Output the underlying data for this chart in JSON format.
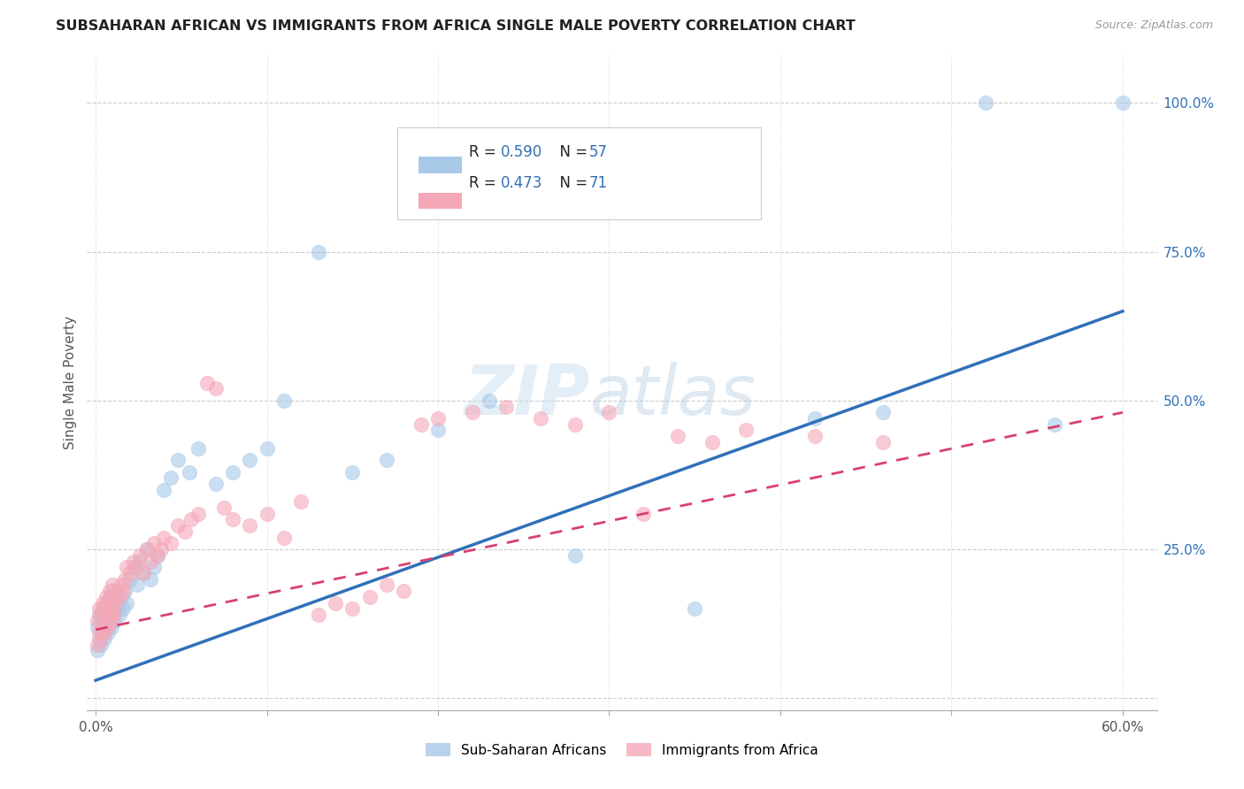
{
  "title": "SUBSAHARAN AFRICAN VS IMMIGRANTS FROM AFRICA SINGLE MALE POVERTY CORRELATION CHART",
  "source": "Source: ZipAtlas.com",
  "ylabel": "Single Male Poverty",
  "xlim": [
    -0.005,
    0.62
  ],
  "ylim": [
    -0.02,
    1.08
  ],
  "xtick_positions": [
    0.0,
    0.1,
    0.2,
    0.3,
    0.4,
    0.5,
    0.6
  ],
  "xticklabels": [
    "0.0%",
    "",
    "",
    "",
    "",
    "",
    "60.0%"
  ],
  "ytick_positions": [
    0.0,
    0.25,
    0.5,
    0.75,
    1.0
  ],
  "yticklabels": [
    "",
    "25.0%",
    "50.0%",
    "75.0%",
    "100.0%"
  ],
  "blue_R": 0.59,
  "blue_N": 57,
  "pink_R": 0.473,
  "pink_N": 71,
  "blue_scatter_color": "#a8c8e8",
  "pink_scatter_color": "#f5a8b8",
  "blue_line_color": "#3070b8",
  "pink_line_color": "#d84070",
  "watermark_zip": "ZIP",
  "watermark_atlas": "atlas",
  "legend_label_blue": "Sub-Saharan Africans",
  "legend_label_pink": "Immigrants from Africa",
  "blue_line_x": [
    0.0,
    0.6
  ],
  "blue_line_y": [
    0.03,
    0.65
  ],
  "pink_line_x": [
    0.0,
    0.6
  ],
  "pink_line_y": [
    0.115,
    0.48
  ],
  "blue_scatter_x": [
    0.001,
    0.001,
    0.002,
    0.002,
    0.003,
    0.003,
    0.004,
    0.004,
    0.005,
    0.005,
    0.006,
    0.006,
    0.007,
    0.008,
    0.008,
    0.009,
    0.01,
    0.01,
    0.011,
    0.012,
    0.013,
    0.014,
    0.015,
    0.016,
    0.017,
    0.018,
    0.02,
    0.022,
    0.024,
    0.026,
    0.028,
    0.03,
    0.032,
    0.034,
    0.036,
    0.04,
    0.044,
    0.048,
    0.055,
    0.06,
    0.07,
    0.08,
    0.09,
    0.1,
    0.11,
    0.13,
    0.15,
    0.17,
    0.2,
    0.23,
    0.28,
    0.35,
    0.42,
    0.46,
    0.52,
    0.56,
    0.6
  ],
  "blue_scatter_y": [
    0.08,
    0.12,
    0.1,
    0.14,
    0.09,
    0.13,
    0.11,
    0.15,
    0.1,
    0.14,
    0.12,
    0.16,
    0.11,
    0.13,
    0.17,
    0.12,
    0.14,
    0.18,
    0.13,
    0.15,
    0.16,
    0.14,
    0.17,
    0.15,
    0.18,
    0.16,
    0.2,
    0.22,
    0.19,
    0.23,
    0.21,
    0.25,
    0.2,
    0.22,
    0.24,
    0.35,
    0.37,
    0.4,
    0.38,
    0.42,
    0.36,
    0.38,
    0.4,
    0.42,
    0.5,
    0.75,
    0.38,
    0.4,
    0.45,
    0.5,
    0.24,
    0.15,
    0.47,
    0.48,
    1.0,
    0.46,
    1.0
  ],
  "pink_scatter_x": [
    0.001,
    0.001,
    0.002,
    0.002,
    0.003,
    0.003,
    0.004,
    0.004,
    0.005,
    0.005,
    0.006,
    0.006,
    0.007,
    0.007,
    0.008,
    0.008,
    0.009,
    0.009,
    0.01,
    0.01,
    0.011,
    0.012,
    0.013,
    0.014,
    0.015,
    0.016,
    0.017,
    0.018,
    0.02,
    0.022,
    0.024,
    0.026,
    0.028,
    0.03,
    0.032,
    0.034,
    0.036,
    0.038,
    0.04,
    0.044,
    0.048,
    0.052,
    0.056,
    0.06,
    0.065,
    0.07,
    0.075,
    0.08,
    0.09,
    0.1,
    0.11,
    0.12,
    0.13,
    0.14,
    0.15,
    0.16,
    0.17,
    0.18,
    0.19,
    0.2,
    0.22,
    0.24,
    0.26,
    0.28,
    0.3,
    0.32,
    0.34,
    0.36,
    0.38,
    0.42,
    0.46
  ],
  "pink_scatter_y": [
    0.09,
    0.13,
    0.11,
    0.15,
    0.1,
    0.14,
    0.12,
    0.16,
    0.11,
    0.15,
    0.13,
    0.17,
    0.12,
    0.16,
    0.14,
    0.18,
    0.13,
    0.17,
    0.15,
    0.19,
    0.14,
    0.16,
    0.18,
    0.17,
    0.19,
    0.18,
    0.2,
    0.22,
    0.21,
    0.23,
    0.22,
    0.24,
    0.21,
    0.25,
    0.23,
    0.26,
    0.24,
    0.25,
    0.27,
    0.26,
    0.29,
    0.28,
    0.3,
    0.31,
    0.53,
    0.52,
    0.32,
    0.3,
    0.29,
    0.31,
    0.27,
    0.33,
    0.14,
    0.16,
    0.15,
    0.17,
    0.19,
    0.18,
    0.46,
    0.47,
    0.48,
    0.49,
    0.47,
    0.46,
    0.48,
    0.31,
    0.44,
    0.43,
    0.45,
    0.44,
    0.43
  ]
}
